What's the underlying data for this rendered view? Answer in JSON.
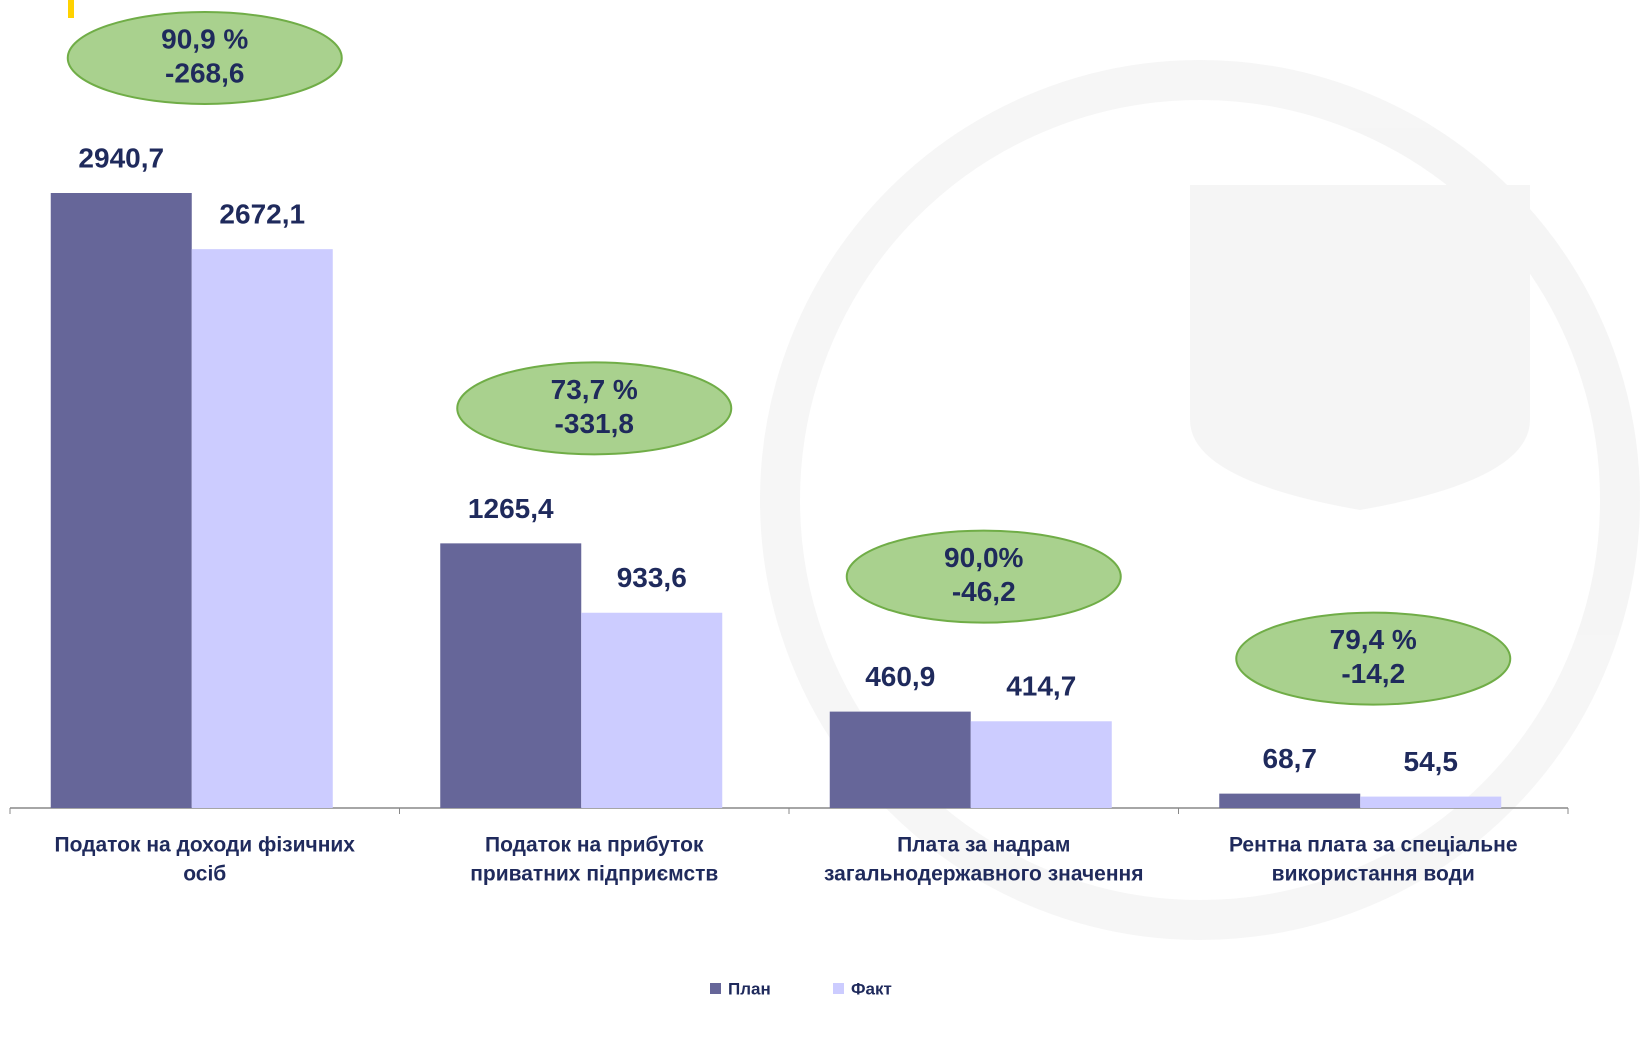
{
  "chart_data": {
    "type": "bar",
    "categories": [
      [
        "Податок на доходи фізичних",
        "осіб"
      ],
      [
        "Податок на прибуток",
        "приватних підприємств"
      ],
      [
        "Плата за надрам",
        "загальнодержавного значення"
      ],
      [
        "Рентна плата за спеціальне",
        "використання води"
      ]
    ],
    "series": [
      {
        "name": "План",
        "color": "#666699",
        "values": [
          2940.7,
          1265.4,
          460.9,
          68.7
        ],
        "value_labels": [
          "2940,7",
          "1265,4",
          "460,9",
          "68,7"
        ]
      },
      {
        "name": "Факт",
        "color": "#ccccff",
        "values": [
          2672.1,
          933.6,
          414.7,
          54.5
        ],
        "value_labels": [
          "2672,1",
          "933,6",
          "414,7",
          "54,5"
        ]
      }
    ],
    "annotations": [
      {
        "percent": "90,9  %",
        "diff": "-268,6"
      },
      {
        "percent": "73,7  %",
        "diff": "-331,8"
      },
      {
        "percent": "90,0%",
        "diff": "-46,2"
      },
      {
        "percent": "79,4  %",
        "diff": "-14,2"
      }
    ],
    "legend": "bottom"
  }
}
